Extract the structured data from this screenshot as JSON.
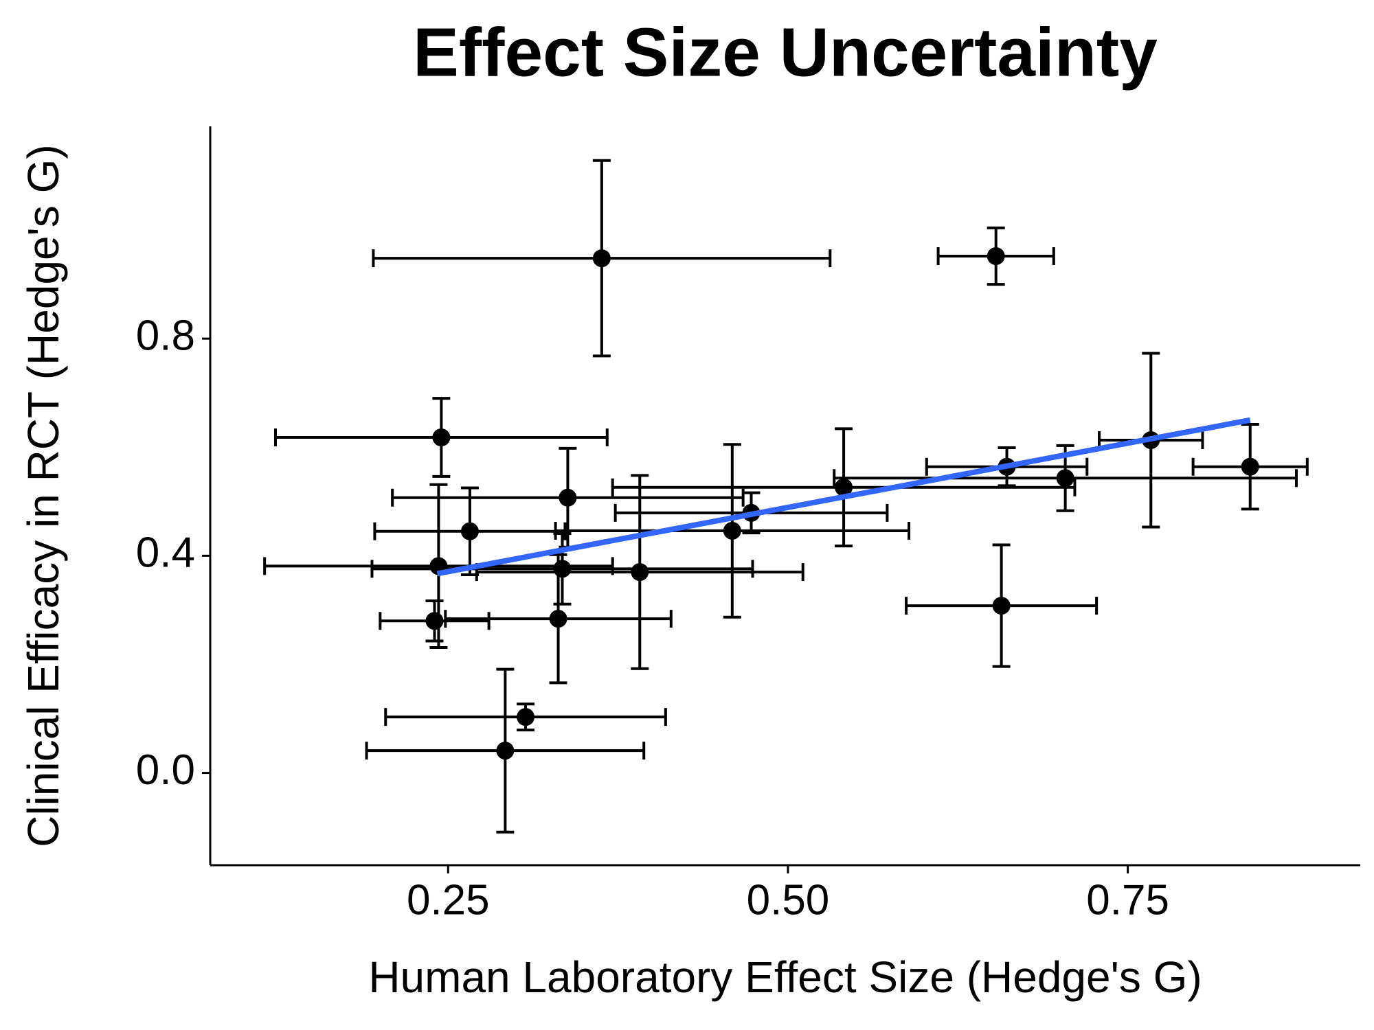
{
  "chart_data": {
    "type": "scatter",
    "title": "Effect Size Uncertainty",
    "x_label": "Human Laboratory Effect Size (Hedge's G)",
    "y_label": "Clinical Efficacy in RCT (Hedge's G)",
    "xlim": [
      0.075,
      0.921
    ],
    "ylim": [
      -0.17,
      1.191
    ],
    "xticks": [
      0.25,
      {
        "value": 0.5,
        "label": "0.50"
      },
      0.75
    ],
    "yticks": [
      {
        "value": 0,
        "label": "0.0"
      },
      0.4,
      0.8
    ],
    "grid": false,
    "series": [
      {
        "color": "#000000",
        "x": [
          0.363,
          0.653,
          0.245,
          0.338,
          0.266,
          0.243,
          0.334,
          0.391,
          0.459,
          0.473,
          0.541,
          0.661,
          0.704,
          0.767,
          0.84,
          0.657,
          0.24,
          0.331,
          0.307,
          0.292
        ],
        "y": [
          0.948,
          0.952,
          0.618,
          0.507,
          0.445,
          0.381,
          0.376,
          0.37,
          0.446,
          0.479,
          0.526,
          0.564,
          0.543,
          0.613,
          0.564,
          0.308,
          0.28,
          0.284,
          0.103,
          0.041
        ],
        "xerr": [
          0.168,
          0.0425,
          0.122,
          0.129,
          0.07,
          0.128,
          0.14,
          0.12,
          0.13,
          0.1,
          0.17,
          0.059,
          0.17,
          0.038,
          0.042,
          0.07,
          0.04,
          0.083,
          0.103,
          0.102
        ],
        "yerr": [
          0.18,
          0.052,
          0.072,
          0.091,
          0.08,
          0.15,
          0.065,
          0.178,
          0.159,
          0.037,
          0.108,
          0.035,
          0.06,
          0.16,
          0.078,
          0.112,
          0.037,
          0.118,
          0.024,
          0.15
        ]
      }
    ],
    "trend": {
      "color": "#3366ff",
      "x": [
        0.242,
        0.84
      ],
      "y": [
        0.367,
        0.65
      ]
    }
  }
}
